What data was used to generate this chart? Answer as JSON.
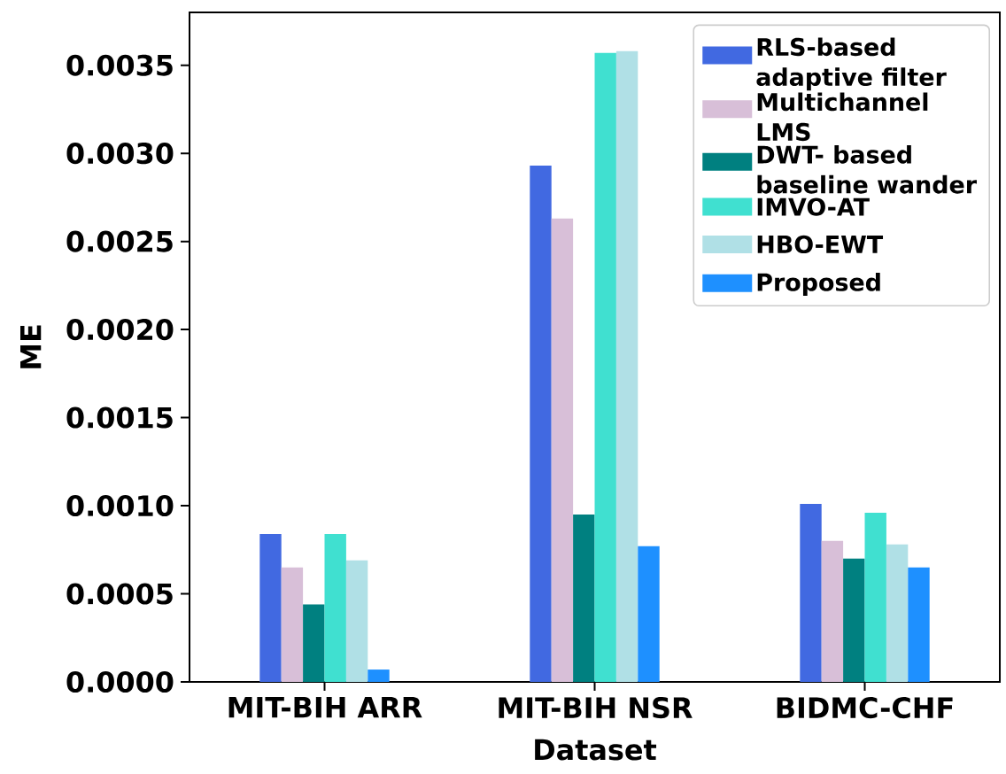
{
  "chart_data": {
    "type": "bar",
    "xlabel": "Dataset",
    "ylabel": "ME",
    "categories": [
      "MIT-BIH ARR",
      "MIT-BIH NSR",
      "BIDMC-CHF"
    ],
    "series": [
      {
        "name": "RLS-based adaptive filter",
        "color": "#4169e1",
        "values": [
          0.00084,
          0.00293,
          0.00101
        ]
      },
      {
        "name": "Multichannel LMS",
        "color": "#d8bfd8",
        "values": [
          0.00065,
          0.00263,
          0.0008
        ]
      },
      {
        "name": "DWT- based baseline wander",
        "color": "#008080",
        "values": [
          0.00044,
          0.00095,
          0.0007
        ]
      },
      {
        "name": "IMVO-AT",
        "color": "#40e0d0",
        "values": [
          0.00084,
          0.00357,
          0.00096
        ]
      },
      {
        "name": "HBO-EWT",
        "color": "#b0e0e6",
        "values": [
          0.00069,
          0.00358,
          0.00078
        ]
      },
      {
        "name": "Proposed",
        "color": "#1e90ff",
        "values": [
          7e-05,
          0.00077,
          0.00065
        ]
      }
    ],
    "ylim": [
      0,
      0.0038
    ],
    "yticks": [
      {
        "value": 0,
        "label": "0.0000"
      },
      {
        "value": 0.0005,
        "label": "0.0005"
      },
      {
        "value": 0.001,
        "label": "0.0010"
      },
      {
        "value": 0.0015,
        "label": "0.0015"
      },
      {
        "value": 0.002,
        "label": "0.0020"
      },
      {
        "value": 0.0025,
        "label": "0.0025"
      },
      {
        "value": 0.003,
        "label": "0.0030"
      },
      {
        "value": 0.0035,
        "label": "0.0035"
      }
    ],
    "legend": "top right"
  }
}
